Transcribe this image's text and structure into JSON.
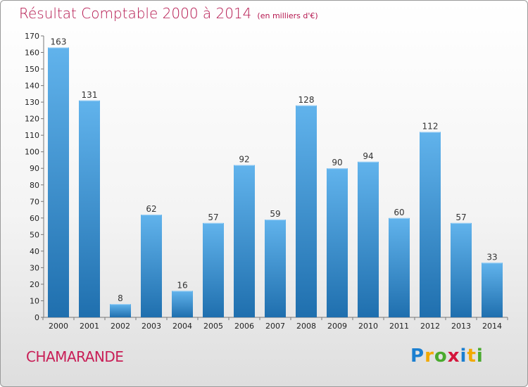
{
  "title": "Résultat Comptable 2000 à 2014",
  "unit_label": "(en milliers d'€)",
  "commune": "CHAMARANDE",
  "logo": {
    "text": "Proxiti",
    "letters": [
      "P",
      "r",
      "o",
      "x",
      "i",
      "t",
      "i"
    ],
    "colors": [
      "#1b7fd0",
      "#f2a900",
      "#4aaa2e",
      "#d4153b",
      "#1b7fd0",
      "#f2a900",
      "#4aaa2e"
    ]
  },
  "colors": {
    "bar_top": "#61b3ec",
    "bar_bottom": "#1f6fae",
    "title": "#b5174f",
    "commune": "#c81e56"
  },
  "chart_data": {
    "type": "bar",
    "title": "Résultat Comptable 2000 à 2014",
    "xlabel": "",
    "ylabel": "",
    "categories": [
      "2000",
      "2001",
      "2002",
      "2003",
      "2004",
      "2005",
      "2006",
      "2007",
      "2008",
      "2009",
      "2010",
      "2011",
      "2012",
      "2013",
      "2014"
    ],
    "values": [
      163,
      131,
      8,
      62,
      16,
      57,
      92,
      59,
      128,
      90,
      94,
      60,
      112,
      57,
      33
    ],
    "ylim": [
      0,
      170
    ],
    "yticks": [
      0,
      10,
      20,
      30,
      40,
      50,
      60,
      70,
      80,
      90,
      100,
      110,
      120,
      130,
      140,
      150,
      160,
      170
    ],
    "grid": false,
    "legend": "none"
  }
}
